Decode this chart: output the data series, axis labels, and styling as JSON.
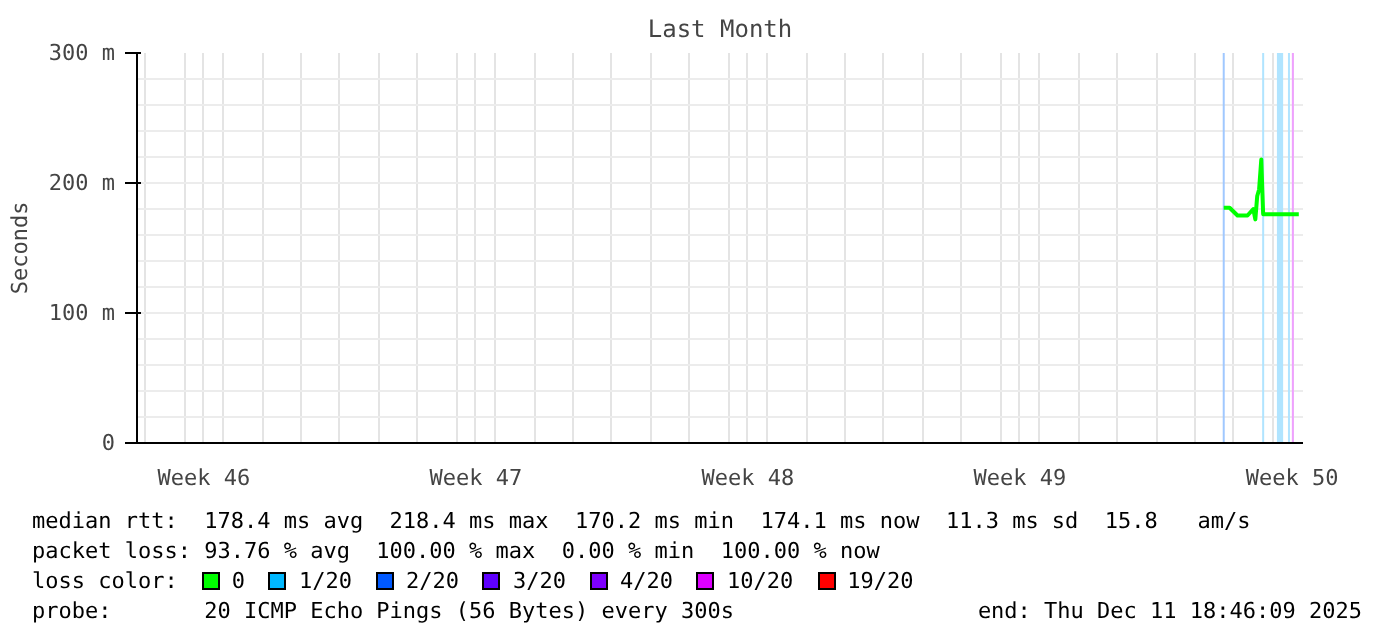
{
  "chart_data": {
    "type": "line",
    "title": "Last Month",
    "ylabel": "Seconds",
    "x": [
      "2025-12-09T17:49",
      "2025-12-09T21:26",
      "2025-12-10T02:20",
      "2025-12-10T08:30",
      "2025-12-10T12:05",
      "2025-12-10T13:20",
      "2025-12-10T14:30",
      "2025-12-10T15:40",
      "2025-12-10T17:00",
      "2025-12-10T18:10",
      "2025-12-11T02:40",
      "2025-12-11T16:10"
    ],
    "series": [
      {
        "name": "0",
        "color": "#00ff00",
        "values": [
          181,
          181,
          175,
          175,
          180,
          172,
          190,
          195,
          218,
          176,
          176,
          176
        ]
      },
      {
        "name": "1/20",
        "color": "#00b8ff",
        "values": [
          null,
          null,
          null,
          null,
          null,
          null,
          null,
          null,
          null,
          null,
          null,
          null
        ]
      },
      {
        "name": "2/20",
        "color": "#0059ff",
        "values": [
          null,
          null,
          null,
          null,
          null,
          null,
          null,
          null,
          null,
          null,
          null,
          null
        ]
      },
      {
        "name": "3/20",
        "color": "#5e00ff",
        "values": [
          null,
          null,
          null,
          null,
          null,
          null,
          null,
          null,
          null,
          null,
          null,
          null
        ]
      },
      {
        "name": "4/20",
        "color": "#7e00ff",
        "values": [
          null,
          null,
          null,
          null,
          null,
          null,
          null,
          null,
          null,
          null,
          null,
          null
        ]
      },
      {
        "name": "10/20",
        "color": "#dd00ff",
        "values": [
          null,
          null,
          null,
          null,
          null,
          null,
          null,
          null,
          null,
          null,
          null,
          null
        ]
      },
      {
        "name": "19/20",
        "color": "#ff0000",
        "values": [
          null,
          null,
          null,
          null,
          null,
          null,
          null,
          null,
          null,
          null,
          null,
          null
        ]
      }
    ],
    "legend_title": "loss color:",
    "legend": "bottom",
    "xlim": [
      "2025-11-11T18:46",
      "2025-12-11T18:46"
    ],
    "xticks": [
      {
        "value": "2025-11-13T12:00",
        "label": "Week 46"
      },
      {
        "value": "2025-11-20T12:00",
        "label": "Week 47"
      },
      {
        "value": "2025-11-27T12:00",
        "label": "Week 48"
      },
      {
        "value": "2025-12-04T12:00",
        "label": "Week 49"
      },
      {
        "value": "2025-12-11T12:00",
        "label": "Week 50"
      }
    ],
    "ylim": [
      0,
      300
    ],
    "yticks": [
      0,
      {
        "value": 100,
        "label": "100 m"
      },
      {
        "value": 200,
        "label": "200 m"
      },
      {
        "value": 300,
        "label": "300 m"
      }
    ],
    "grid": true,
    "ref_lines": [
      {
        "axis": "x",
        "value": "2025-12-09T17:49",
        "color": "#a0c8ff"
      },
      {
        "axis": "x",
        "value": "2025-12-10T18:10",
        "color": "#b0e4ff"
      },
      {
        "axis": "x",
        "value": "2025-12-11T10:06",
        "color": "#b0e4ff"
      },
      {
        "axis": "x",
        "value": "2025-12-11T12:30",
        "color": "#f0a0ff"
      }
    ],
    "bands": [
      {
        "axis": "x",
        "from": "2025-12-11T02:40",
        "to": "2025-12-11T06:30",
        "color": "#b0e4ff"
      }
    ],
    "annotations": [
      "median rtt:  178.4 ms avg  218.4 ms max  170.2 ms min  174.1 ms now  11.3 ms sd  15.8   am/s",
      "packet loss: 93.76 % avg  100.00 % max  0.00 % min  100.00 % now",
      "probe:       20 ICMP Echo Pings (56 Bytes) every 300s",
      "end: Thu Dec 11 18:46:09 2025"
    ]
  }
}
